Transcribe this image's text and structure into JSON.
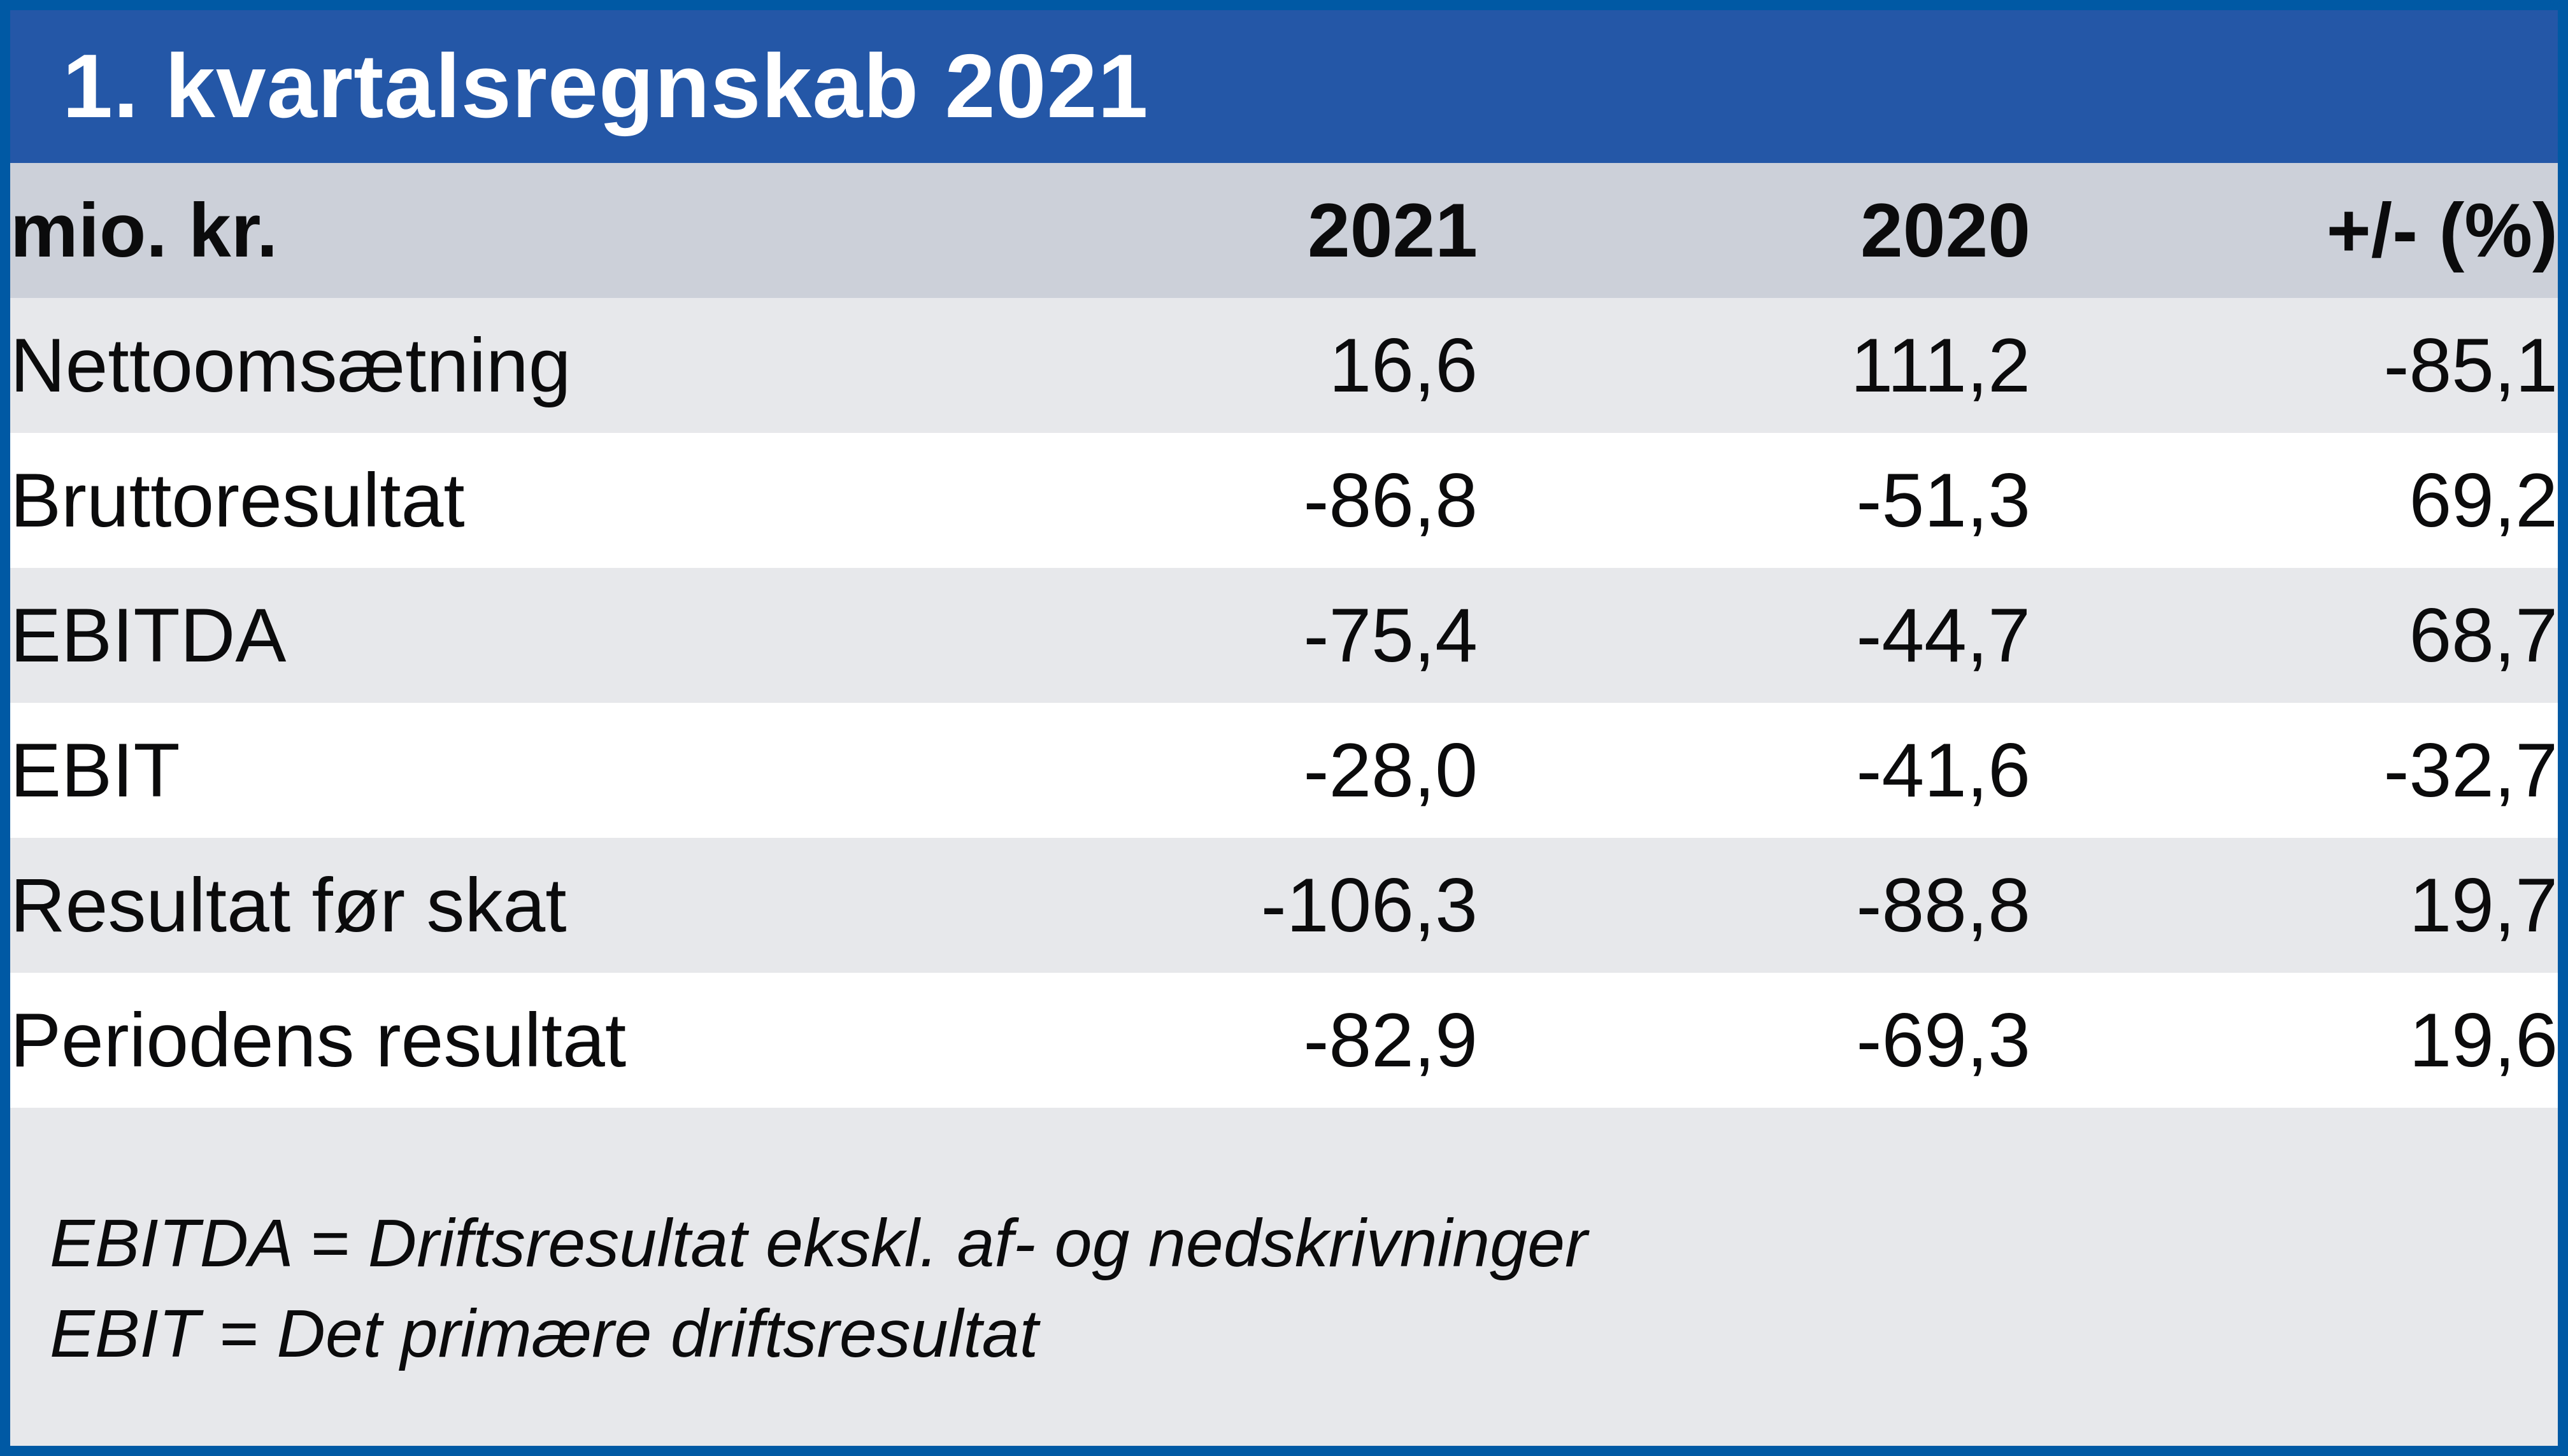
{
  "title": "1. kvartalsregnskab 2021",
  "table": {
    "columns": [
      "mio. kr.",
      "2021",
      "2020",
      "+/- (%)"
    ],
    "rows": [
      {
        "label": "Nettoomsætning",
        "y2021": "16,6",
        "y2020": "111,2",
        "change": "-85,1"
      },
      {
        "label": "Bruttoresultat",
        "y2021": "-86,8",
        "y2020": "-51,3",
        "change": "69,2"
      },
      {
        "label": "EBITDA",
        "y2021": "-75,4",
        "y2020": "-44,7",
        "change": "68,7"
      },
      {
        "label": "EBIT",
        "y2021": "-28,0",
        "y2020": "-41,6",
        "change": "-32,7"
      },
      {
        "label": "Resultat før skat",
        "y2021": "-106,3",
        "y2020": "-88,8",
        "change": "19,7"
      },
      {
        "label": "Periodens resultat",
        "y2021": "-82,9",
        "y2020": "-69,3",
        "change": "19,6"
      }
    ]
  },
  "footnotes": [
    "EBITDA = Driftsresultat ekskl. af- og nedskrivninger",
    "EBIT = Det primære driftsresultat"
  ],
  "colors": {
    "frame_border": "#0059a4",
    "title_bar": "#2457a7",
    "title_text": "#ffffff",
    "header_row": "#ccd0d9",
    "row_alt": "#e7e8eb",
    "row_white": "#ffffff",
    "text": "#0b0b0c"
  },
  "chart_data": {
    "type": "table",
    "title": "1. kvartalsregnskab 2021",
    "unit": "mio. kr.",
    "columns": [
      "mio. kr.",
      "2021",
      "2020",
      "+/- (%)"
    ],
    "categories": [
      "Nettoomsætning",
      "Bruttoresultat",
      "EBITDA",
      "EBIT",
      "Resultat før skat",
      "Periodens resultat"
    ],
    "series": [
      {
        "name": "2021",
        "values": [
          16.6,
          -86.8,
          -75.4,
          -28.0,
          -106.3,
          -82.9
        ]
      },
      {
        "name": "2020",
        "values": [
          111.2,
          -51.3,
          -44.7,
          -41.6,
          -88.8,
          -69.3
        ]
      },
      {
        "name": "+/- (%)",
        "values": [
          -85.1,
          69.2,
          68.7,
          -32.7,
          19.7,
          19.6
        ]
      }
    ],
    "annotations": [
      "EBITDA = Driftsresultat ekskl. af- og nedskrivninger",
      "EBIT = Det primære driftsresultat"
    ]
  }
}
